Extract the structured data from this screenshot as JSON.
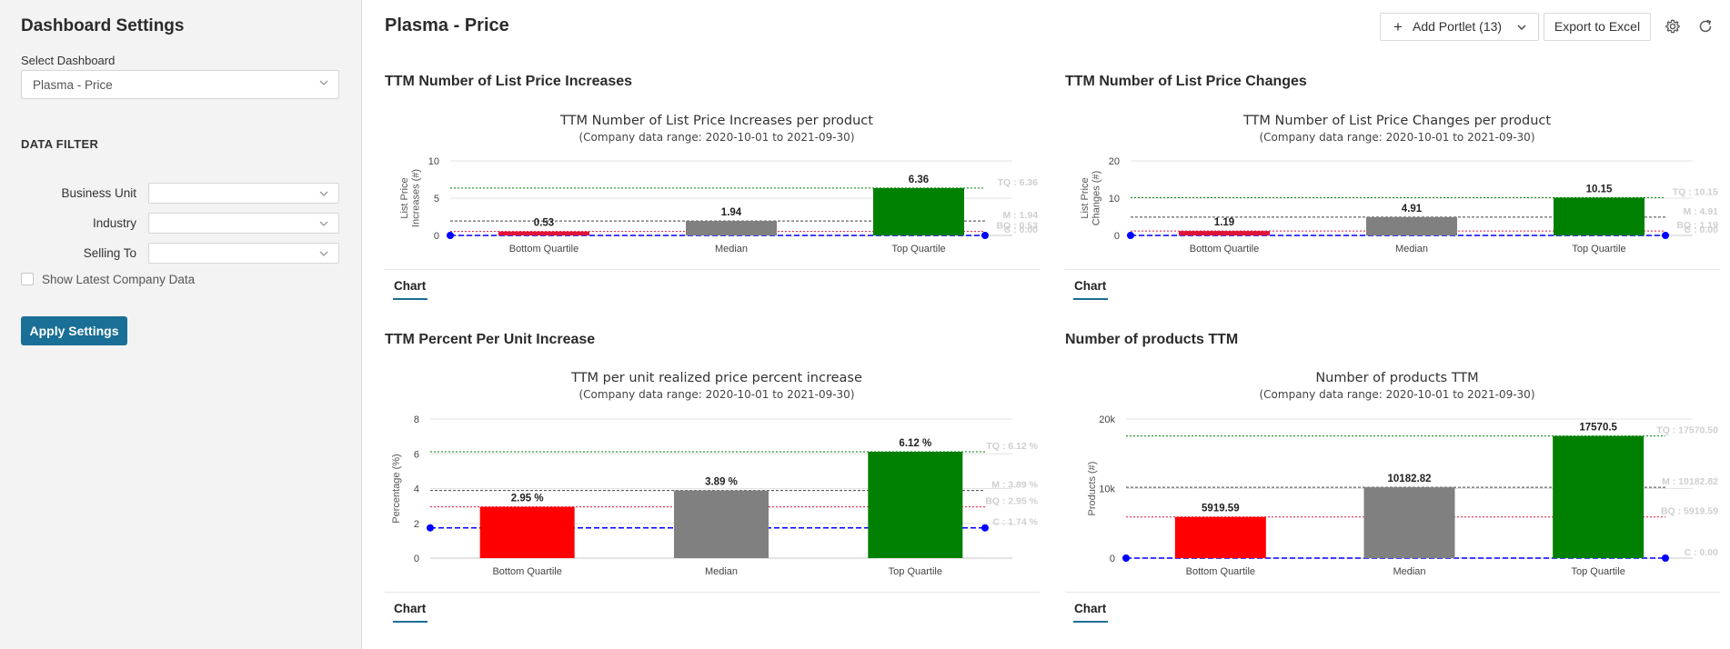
{
  "sidebar": {
    "title": "Dashboard Settings",
    "select_label": "Select Dashboard",
    "dashboard_value": "Plasma - Price",
    "data_filter_title": "DATA FILTER",
    "filters": [
      {
        "label": "Business Unit",
        "value": ""
      },
      {
        "label": "Industry",
        "value": ""
      },
      {
        "label": "Selling To",
        "value": ""
      }
    ],
    "show_latest_label": "Show Latest Company Data",
    "apply_label": "Apply Settings"
  },
  "header": {
    "title": "Plasma - Price",
    "add_portlet_label": "Add Portlet (13)",
    "export_label": "Export to Excel"
  },
  "portlets": [
    {
      "title": "TTM Number of List Price Increases",
      "tab": "Chart"
    },
    {
      "title": "TTM Number of List Price Changes",
      "tab": "Chart"
    },
    {
      "title": "TTM Percent Per Unit Increase",
      "tab": "Chart"
    },
    {
      "title": "Number of products TTM",
      "tab": "Chart"
    }
  ],
  "colors": {
    "accent": "#1a6f96",
    "bottom": "#e01338",
    "bottom_bright": "#ff0000",
    "median": "#808080",
    "top": "#008000",
    "company": "#0000ff"
  },
  "chart_data": [
    {
      "type": "bar",
      "title": "TTM Number of List Price Increases per product",
      "subtitle": "(Company data range: 2020-10-01 to 2021-09-30)",
      "ylabel": [
        "List Price",
        "Increases (#)"
      ],
      "categories": [
        "Bottom Quartile",
        "Median",
        "Top Quartile"
      ],
      "values": [
        0.53,
        1.94,
        6.36
      ],
      "labels": [
        "0.53",
        "1.94",
        "6.36"
      ],
      "yticks": [
        0,
        5,
        10
      ],
      "yticklabels": [
        "0",
        "5",
        "10"
      ],
      "ylim": [
        0,
        10
      ],
      "company": 0,
      "ref_labels": [
        "TQ : 6.36",
        "M : 1.94",
        "BQ : 0.53",
        "C : 0.00"
      ],
      "bar_colors": [
        "#e01338",
        "#808080",
        "#008000"
      ]
    },
    {
      "type": "bar",
      "title": "TTM Number of List Price Changes per product",
      "subtitle": "(Company data range: 2020-10-01 to 2021-09-30)",
      "ylabel": [
        "List Price",
        "Changes (#)"
      ],
      "categories": [
        "Bottom Quartile",
        "Median",
        "Top Quartile"
      ],
      "values": [
        1.19,
        4.91,
        10.15
      ],
      "labels": [
        "1.19",
        "4.91",
        "10.15"
      ],
      "yticks": [
        0,
        10,
        20
      ],
      "yticklabels": [
        "0",
        "10",
        "20"
      ],
      "ylim": [
        0,
        20
      ],
      "company": 0,
      "ref_labels": [
        "TQ : 10.15",
        "M : 4.91",
        "BQ : 1.19",
        "C : 0.00"
      ],
      "bar_colors": [
        "#e01338",
        "#808080",
        "#008000"
      ]
    },
    {
      "type": "bar",
      "title": "TTM per unit realized price percent increase",
      "subtitle": "(Company data range: 2020-10-01 to 2021-09-30)",
      "ylabel": [
        "Percentage (%)"
      ],
      "categories": [
        "Bottom Quartile",
        "Median",
        "Top Quartile"
      ],
      "values": [
        2.95,
        3.89,
        6.12
      ],
      "labels": [
        "2.95 %",
        "3.89 %",
        "6.12 %"
      ],
      "yticks": [
        0,
        2,
        4,
        6,
        8
      ],
      "yticklabels": [
        "0",
        "2",
        "4",
        "6",
        "8"
      ],
      "ylim": [
        0,
        8
      ],
      "company": 1.74,
      "ref_labels": [
        "TQ : 6.12 %",
        "M : 3.89 %",
        "BQ : 2.95 %",
        "C : 1.74 %"
      ],
      "bar_colors": [
        "#ff0000",
        "#808080",
        "#008000"
      ]
    },
    {
      "type": "bar",
      "title": "Number of products TTM",
      "subtitle": "(Company data range: 2020-10-01 to 2021-09-30)",
      "ylabel": [
        "Products (#)"
      ],
      "categories": [
        "Bottom Quartile",
        "Median",
        "Top Quartile"
      ],
      "values": [
        5919.59,
        10182.82,
        17570.5
      ],
      "labels": [
        "5919.59",
        "10182.82",
        "17570.5"
      ],
      "yticks": [
        0,
        10000,
        20000
      ],
      "yticklabels": [
        "0",
        "10k",
        "20k"
      ],
      "ylim": [
        0,
        20000
      ],
      "company": 0,
      "ref_labels": [
        "TQ : 17570.50",
        "M : 10182.82",
        "BQ : 5919.59",
        "C : 0.00"
      ],
      "bar_colors": [
        "#ff0000",
        "#808080",
        "#008000"
      ]
    }
  ]
}
